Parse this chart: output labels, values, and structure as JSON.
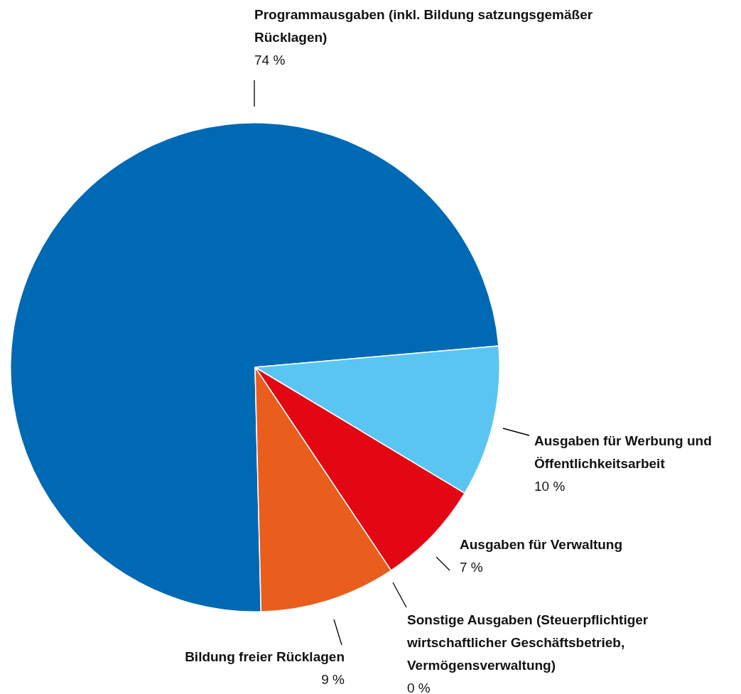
{
  "chart_data": {
    "type": "pie",
    "categories": [
      "Programmausgaben (inkl. Bildung satzungsgemäßer Rücklagen)",
      "Ausgaben für Werbung und Öffentlichkeitsarbeit",
      "Ausgaben für Verwaltung",
      "Sonstige Ausgaben (Steuerpflichtiger wirtschaftlicher Geschäftsbetrieb, Vermögensverwaltung)",
      "Bildung freier Rücklagen"
    ],
    "values": [
      74,
      10,
      7,
      0,
      9
    ],
    "value_labels": [
      "74 %",
      "10 %",
      "7 %",
      "0 %",
      "9 %"
    ],
    "colors": [
      "#0069b4",
      "#5bc5f2",
      "#e30613",
      "#f7d117",
      "#e95d1d"
    ]
  }
}
